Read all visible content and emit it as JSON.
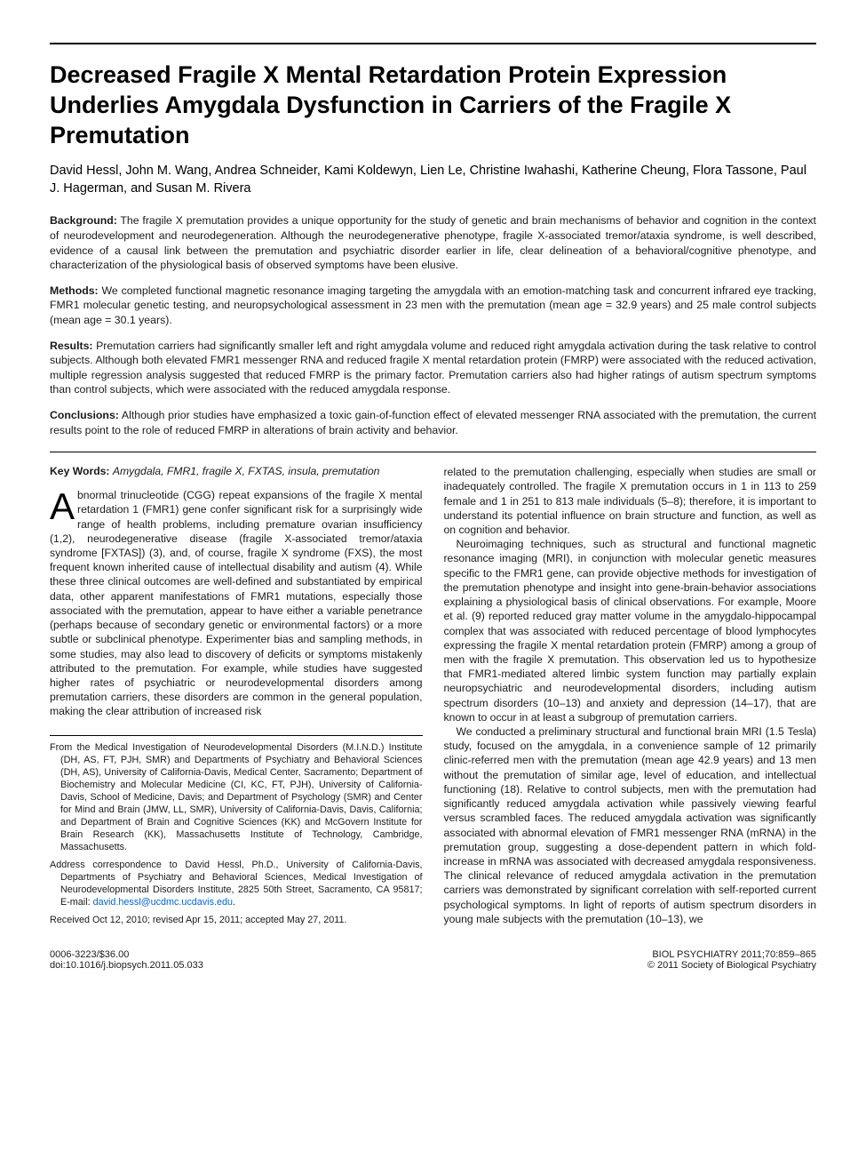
{
  "title": "Decreased Fragile X Mental Retardation Protein Expression Underlies Amygdala Dysfunction in Carriers of the Fragile X Premutation",
  "authors": "David Hessl, John M. Wang, Andrea Schneider, Kami Koldewyn, Lien Le, Christine Iwahashi, Katherine Cheung, Flora Tassone, Paul J. Hagerman, and Susan M. Rivera",
  "abstract": {
    "background": {
      "label": "Background:",
      "text": "The fragile X premutation provides a unique opportunity for the study of genetic and brain mechanisms of behavior and cognition in the context of neurodevelopment and neurodegeneration. Although the neurodegenerative phenotype, fragile X-associated tremor/ataxia syndrome, is well described, evidence of a causal link between the premutation and psychiatric disorder earlier in life, clear delineation of a behavioral/cognitive phenotype, and characterization of the physiological basis of observed symptoms have been elusive."
    },
    "methods": {
      "label": "Methods:",
      "text": "We completed functional magnetic resonance imaging targeting the amygdala with an emotion-matching task and concurrent infrared eye tracking, FMR1 molecular genetic testing, and neuropsychological assessment in 23 men with the premutation (mean age = 32.9 years) and 25 male control subjects (mean age = 30.1 years)."
    },
    "results": {
      "label": "Results:",
      "text": "Premutation carriers had significantly smaller left and right amygdala volume and reduced right amygdala activation during the task relative to control subjects. Although both elevated FMR1 messenger RNA and reduced fragile X mental retardation protein (FMRP) were associated with the reduced activation, multiple regression analysis suggested that reduced FMRP is the primary factor. Premutation carriers also had higher ratings of autism spectrum symptoms than control subjects, which were associated with the reduced amygdala response."
    },
    "conclusions": {
      "label": "Conclusions:",
      "text": "Although prior studies have emphasized a toxic gain-of-function effect of elevated messenger RNA associated with the premutation, the current results point to the role of reduced FMRP in alterations of brain activity and behavior."
    }
  },
  "keywords": {
    "label": "Key Words:",
    "text": "Amygdala, FMR1, fragile X, FXTAS, insula, premutation"
  },
  "body": {
    "col1": {
      "p1_dropcap": "A",
      "p1": "bnormal trinucleotide (CGG) repeat expansions of the fragile X mental retardation 1 (FMR1) gene confer significant risk for a surprisingly wide range of health problems, including premature ovarian insufficiency (1,2), neurodegenerative disease (fragile X-associated tremor/ataxia syndrome [FXTAS]) (3), and, of course, fragile X syndrome (FXS), the most frequent known inherited cause of intellectual disability and autism (4). While these three clinical outcomes are well-defined and substantiated by empirical data, other apparent manifestations of FMR1 mutations, especially those associated with the premutation, appear to have either a variable penetrance (perhaps because of secondary genetic or environmental factors) or a more subtle or subclinical phenotype. Experimenter bias and sampling methods, in some studies, may also lead to discovery of deficits or symptoms mistakenly attributed to the premutation. For example, while studies have suggested higher rates of psychiatric or neurodevelopmental disorders among premutation carriers, these disorders are common in the general population, making the clear attribution of increased risk"
    },
    "col2": {
      "p1": "related to the premutation challenging, especially when studies are small or inadequately controlled. The fragile X premutation occurs in 1 in 113 to 259 female and 1 in 251 to 813 male individuals (5–8); therefore, it is important to understand its potential influence on brain structure and function, as well as on cognition and behavior.",
      "p2": "Neuroimaging techniques, such as structural and functional magnetic resonance imaging (MRI), in conjunction with molecular genetic measures specific to the FMR1 gene, can provide objective methods for investigation of the premutation phenotype and insight into gene-brain-behavior associations explaining a physiological basis of clinical observations. For example, Moore et al. (9) reported reduced gray matter volume in the amygdalo-hippocampal complex that was associated with reduced percentage of blood lymphocytes expressing the fragile X mental retardation protein (FMRP) among a group of men with the fragile X premutation. This observation led us to hypothesize that FMR1-mediated altered limbic system function may partially explain neuropsychiatric and neurodevelopmental disorders, including autism spectrum disorders (10–13) and anxiety and depression (14–17), that are known to occur in at least a subgroup of premutation carriers.",
      "p3": "We conducted a preliminary structural and functional brain MRI (1.5 Tesla) study, focused on the amygdala, in a convenience sample of 12 primarily clinic-referred men with the premutation (mean age 42.9 years) and 13 men without the premutation of similar age, level of education, and intellectual functioning (18). Relative to control subjects, men with the premutation had significantly reduced amygdala activation while passively viewing fearful versus scrambled faces. The reduced amygdala activation was significantly associated with abnormal elevation of FMR1 messenger RNA (mRNA) in the premutation group, suggesting a dose-dependent pattern in which fold-increase in mRNA was associated with decreased amygdala responsiveness. The clinical relevance of reduced amygdala activation in the premutation carriers was demonstrated by significant correlation with self-reported current psychological symptoms. In light of reports of autism spectrum disorders in young male subjects with the premutation (10–13), we"
    }
  },
  "affil": {
    "p1": "From the Medical Investigation of Neurodevelopmental Disorders (M.I.N.D.) Institute (DH, AS, FT, PJH, SMR) and Departments of Psychiatry and Behavioral Sciences (DH, AS), University of California-Davis, Medical Center, Sacramento; Department of Biochemistry and Molecular Medicine (CI, KC, FT, PJH), University of California-Davis, School of Medicine, Davis; and Department of Psychology (SMR) and Center for Mind and Brain (JMW, LL, SMR), University of California-Davis, Davis, California; and Department of Brain and Cognitive Sciences (KK) and McGovern Institute for Brain Research (KK), Massachusetts Institute of Technology, Cambridge, Massachusetts.",
    "p2_pre": "Address correspondence to David Hessl, Ph.D., University of California-Davis, Departments of Psychiatry and Behavioral Sciences, Medical Investigation of Neurodevelopmental Disorders Institute, 2825 50th Street, Sacramento, CA 95817; E-mail: ",
    "p2_email": "david.hessl@ucdmc.ucdavis.edu",
    "p2_post": ".",
    "p3": "Received Oct 12, 2010; revised Apr 15, 2011; accepted May 27, 2011."
  },
  "footer": {
    "left1": "0006-3223/$36.00",
    "left2": "doi:10.1016/j.biopsych.2011.05.033",
    "right1": "BIOL PSYCHIATRY 2011;70:859–865",
    "right2": "© 2011 Society of Biological Psychiatry"
  }
}
